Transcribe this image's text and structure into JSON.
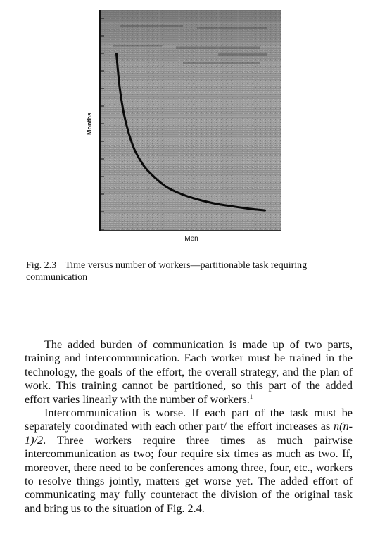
{
  "figure": {
    "ylabel": "Months",
    "xlabel": "Men",
    "chart_data": {
      "type": "line",
      "title": "",
      "xlabel": "Men",
      "ylabel": "Months",
      "grid": true,
      "series": [
        {
          "x": [
            1,
            1.2,
            1.5,
            2,
            2.5,
            3,
            4,
            5,
            6,
            7,
            8,
            9,
            10
          ],
          "values": [
            10.0,
            8.1,
            6.4,
            4.8,
            3.9,
            3.3,
            2.5,
            2.05,
            1.75,
            1.53,
            1.38,
            1.25,
            1.15
          ]
        }
      ]
    }
  },
  "caption": {
    "label": "Fig. 2.3",
    "text": "Time versus number of workers—partitionable task requiring communication"
  },
  "paragraph1": {
    "text": "The added burden of communication is made up of two parts, training and intercommunication. Each worker must be trained in the technology, the goals of the effort, the overall strategy, and the plan of work. This training cannot be partitioned, so this part of the added effort varies linearly with the number of workers.",
    "footnote": "1"
  },
  "paragraph2": {
    "text_a": "Intercommunication is worse. If each part of the task must be separately coordinated with each other part/ the effort increases as ",
    "formula": "n(n-1)/2",
    "text_b": ". Three workers require three times as much pairwise intercommunication as two; four require six times as much as two. If, moreover, there need to be conferences among three, four, etc., workers to resolve things jointly, matters get worse yet. The added effort of communicating may fully counteract the division of the original task and bring us to the situation of Fig. 2.4."
  }
}
